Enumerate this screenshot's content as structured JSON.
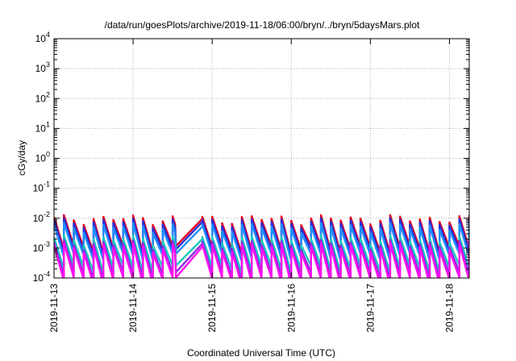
{
  "chart_data": {
    "type": "line",
    "title": "/data/run/goesPlots/archive/2019-11-18/06:00/bryn/../bryn/5daysMars.plot",
    "xlabel": "Coordinated Universal Time (UTC)",
    "ylabel": "cGy/day",
    "yscale": "log",
    "ylim": [
      0.0001,
      10000
    ],
    "xlim": [
      "2019-11-13",
      "2019-11-18 06:00"
    ],
    "x_ticks": [
      "2019-11-13",
      "2019-11-14",
      "2019-11-15",
      "2019-11-16",
      "2019-11-17",
      "2019-11-18"
    ],
    "y_ticks": [
      {
        "base": "10",
        "exp": "-4"
      },
      {
        "base": "10",
        "exp": "-3"
      },
      {
        "base": "10",
        "exp": "-2"
      },
      {
        "base": "10",
        "exp": "-1"
      },
      {
        "base": "10",
        "exp": "0"
      },
      {
        "base": "10",
        "exp": "1"
      },
      {
        "base": "10",
        "exp": "2"
      },
      {
        "base": "10",
        "exp": "3"
      },
      {
        "base": "10",
        "exp": "4"
      }
    ],
    "grid": true,
    "period_hours": 3,
    "gap": {
      "from_hours": 37,
      "to_hours": 45
    },
    "series": [
      {
        "color": "#e8001c",
        "peak": 0.0095,
        "trough": 0.0009
      },
      {
        "color": "#2a2ed6",
        "peak": 0.0075,
        "trough": 0.0007
      },
      {
        "color": "#1f8fff",
        "peak": 0.0052,
        "trough": 0.0005
      },
      {
        "color": "#18c9c0",
        "peak": 0.002,
        "trough": 0.0002
      },
      {
        "color": "#8a2be2",
        "peak": 0.0014,
        "trough": 0.00012
      },
      {
        "color": "#ff10f0",
        "peak": 0.0011,
        "trough": 8e-05
      }
    ]
  }
}
